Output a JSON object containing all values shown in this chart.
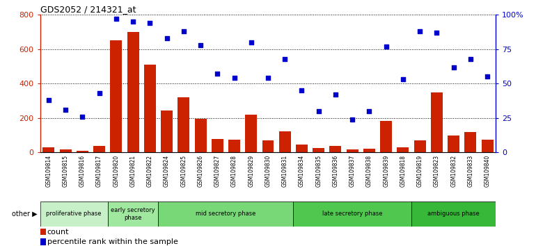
{
  "title": "GDS2052 / 214321_at",
  "samples": [
    "GSM109814",
    "GSM109815",
    "GSM109816",
    "GSM109817",
    "GSM109820",
    "GSM109821",
    "GSM109822",
    "GSM109824",
    "GSM109825",
    "GSM109826",
    "GSM109827",
    "GSM109828",
    "GSM109829",
    "GSM109830",
    "GSM109831",
    "GSM109834",
    "GSM109835",
    "GSM109836",
    "GSM109837",
    "GSM109838",
    "GSM109839",
    "GSM109818",
    "GSM109819",
    "GSM109823",
    "GSM109832",
    "GSM109833",
    "GSM109840"
  ],
  "counts": [
    30,
    20,
    12,
    40,
    650,
    700,
    510,
    245,
    320,
    195,
    80,
    75,
    220,
    70,
    125,
    45,
    25,
    40,
    18,
    22,
    185,
    30,
    70,
    350,
    100,
    120,
    75
  ],
  "percentiles": [
    38,
    31,
    26,
    43,
    97,
    95,
    94,
    83,
    88,
    78,
    57,
    54,
    80,
    54,
    68,
    45,
    30,
    42,
    24,
    30,
    77,
    53,
    88,
    87,
    62,
    68,
    55
  ],
  "phases": [
    {
      "label": "proliferative phase",
      "start": 0,
      "end": 4,
      "color": "#c8f0c8"
    },
    {
      "label": "early secretory\nphase",
      "start": 4,
      "end": 7,
      "color": "#a0e8a0"
    },
    {
      "label": "mid secretory phase",
      "start": 7,
      "end": 15,
      "color": "#78d878"
    },
    {
      "label": "late secretory phase",
      "start": 15,
      "end": 22,
      "color": "#50c850"
    },
    {
      "label": "ambiguous phase",
      "start": 22,
      "end": 27,
      "color": "#38b838"
    }
  ],
  "bar_color": "#cc2200",
  "scatter_color": "#0000cc",
  "ylim_left": [
    0,
    800
  ],
  "ylim_right": [
    0,
    100
  ],
  "yticks_left": [
    0,
    200,
    400,
    600,
    800
  ],
  "yticks_right": [
    0,
    25,
    50,
    75,
    100
  ],
  "yticklabels_right": [
    "0",
    "25",
    "50",
    "75",
    "100%"
  ],
  "tick_area_color": "#d8d8d8",
  "plot_bg_color": "#ffffff"
}
